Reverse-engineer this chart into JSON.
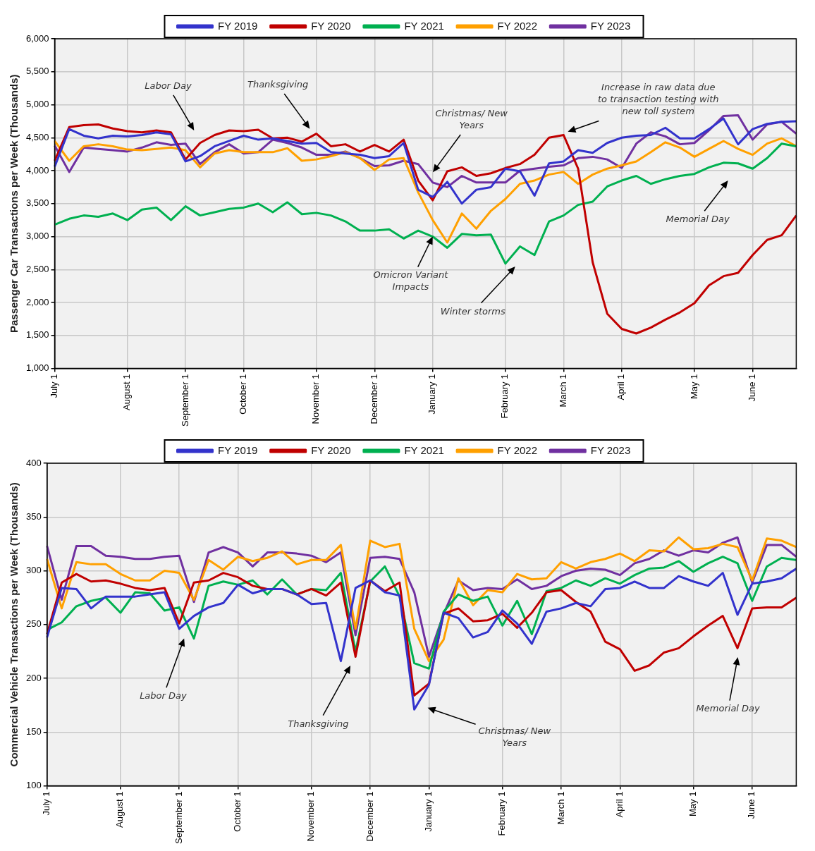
{
  "chart_data": [
    {
      "type": "line",
      "ylabel": "Passenger Car Transactions per Week (Thousands)",
      "legend": "top",
      "grid": true,
      "marker": "none",
      "categories": [
        "July 1",
        null,
        null,
        null,
        null,
        "August 1",
        null,
        null,
        null,
        "September 1",
        null,
        null,
        null,
        "October 1",
        null,
        null,
        null,
        null,
        "November 1",
        null,
        null,
        null,
        "December 1",
        null,
        null,
        null,
        "January 1",
        null,
        null,
        null,
        null,
        "February 1",
        null,
        null,
        null,
        "March 1",
        null,
        null,
        null,
        "April 1",
        null,
        null,
        null,
        null,
        "May 1",
        null,
        null,
        null,
        "June 1",
        null,
        null,
        null
      ],
      "ylim": [
        1000,
        6000
      ],
      "yticks": [
        {
          "value": 1000,
          "label": "1,000"
        },
        {
          "value": 1500,
          "label": "1,500"
        },
        {
          "value": 2000,
          "label": "2,000"
        },
        {
          "value": 2500,
          "label": "2,500"
        },
        {
          "value": 3000,
          "label": "3,000"
        },
        {
          "value": 3500,
          "label": "3,500"
        },
        {
          "value": 4000,
          "label": "4,000"
        },
        {
          "value": 4500,
          "label": "4,500"
        },
        {
          "value": 5000,
          "label": "5,000"
        },
        {
          "value": 5500,
          "label": "5,500"
        },
        {
          "value": 6000,
          "label": "6,000"
        }
      ],
      "series": [
        {
          "name": "FY 2019",
          "color": "#3333cc",
          "values": [
            4060,
            4630,
            4530,
            4490,
            4530,
            4520,
            4540,
            4580,
            4550,
            4140,
            4220,
            4370,
            4450,
            4530,
            4470,
            4490,
            4450,
            4410,
            4420,
            4280,
            4260,
            4240,
            4190,
            4220,
            4420,
            3710,
            3600,
            3830,
            3500,
            3710,
            3750,
            4030,
            3990,
            3620,
            4110,
            4140,
            4310,
            4270,
            4420,
            4500,
            4530,
            4540,
            4650,
            4490,
            4490,
            4630,
            4790,
            4400,
            4630,
            4710,
            4740,
            4750
          ]
        },
        {
          "name": "FY 2020",
          "color": "#c00000",
          "values": [
            4150,
            4660,
            4690,
            4700,
            4640,
            4600,
            4580,
            4610,
            4580,
            4170,
            4420,
            4540,
            4610,
            4600,
            4620,
            4490,
            4500,
            4440,
            4560,
            4370,
            4400,
            4290,
            4390,
            4290,
            4470,
            3850,
            3550,
            3990,
            4050,
            3920,
            3960,
            4040,
            4100,
            4240,
            4500,
            4540,
            4030,
            2610,
            1830,
            1600,
            1530,
            1620,
            1740,
            1850,
            1990,
            2260,
            2400,
            2450,
            2720,
            2950,
            3020,
            3320
          ]
        },
        {
          "name": "FY 2021",
          "color": "#00b050",
          "values": [
            3180,
            3270,
            3320,
            3300,
            3350,
            3250,
            3410,
            3440,
            3250,
            3460,
            3320,
            3370,
            3420,
            3440,
            3500,
            3370,
            3520,
            3340,
            3360,
            3320,
            3230,
            3090,
            3090,
            3110,
            2970,
            3090,
            3000,
            2830,
            3040,
            3020,
            3030,
            2590,
            2850,
            2720,
            3230,
            3320,
            3480,
            3530,
            3760,
            3850,
            3920,
            3800,
            3870,
            3920,
            3950,
            4050,
            4120,
            4110,
            4030,
            4190,
            4410,
            4370
          ]
        },
        {
          "name": "FY 2022",
          "color": "#ffa000",
          "values": [
            4450,
            4150,
            4370,
            4400,
            4370,
            4320,
            4310,
            4330,
            4350,
            4310,
            4050,
            4260,
            4310,
            4280,
            4280,
            4280,
            4340,
            4150,
            4170,
            4220,
            4280,
            4190,
            4010,
            4170,
            4190,
            3670,
            3250,
            2910,
            3350,
            3120,
            3390,
            3570,
            3800,
            3850,
            3940,
            3980,
            3800,
            3940,
            4030,
            4080,
            4140,
            4280,
            4430,
            4350,
            4210,
            4330,
            4450,
            4330,
            4240,
            4410,
            4490,
            4370
          ]
        },
        {
          "name": "FY 2023",
          "color": "#7030a0",
          "values": [
            4380,
            3980,
            4350,
            4330,
            4310,
            4290,
            4350,
            4430,
            4390,
            4410,
            4100,
            4280,
            4400,
            4260,
            4280,
            4470,
            4420,
            4350,
            4240,
            4240,
            4290,
            4190,
            4070,
            4080,
            4150,
            4100,
            3820,
            3750,
            3920,
            3820,
            3820,
            3820,
            4000,
            4030,
            4060,
            4080,
            4190,
            4210,
            4170,
            4040,
            4410,
            4580,
            4520,
            4400,
            4420,
            4610,
            4830,
            4840,
            4470,
            4700,
            4740,
            4560
          ]
        }
      ],
      "annotations": [
        "Labor Day",
        "Thanksgiving",
        "Christmas/ New Years",
        {
          "text": "Omicron Variant Impacts",
          "x": "January 1",
          "y": 3000
        },
        "Winter storms",
        "Increase in raw data due to transaction testing with new toll system",
        "Memorial Day"
      ]
    },
    {
      "type": "line",
      "ylabel": "Commercial Vehicle Transactions per Week (Thousands)",
      "legend": "top",
      "grid": true,
      "marker": "none",
      "categories": [
        "July 1",
        null,
        null,
        null,
        null,
        "August 1",
        null,
        null,
        null,
        "September 1",
        null,
        null,
        null,
        "October 1",
        null,
        null,
        null,
        null,
        "November 1",
        null,
        null,
        null,
        "December 1",
        null,
        null,
        null,
        "January 1",
        null,
        null,
        null,
        null,
        "February 1",
        null,
        null,
        null,
        "March 1",
        null,
        null,
        null,
        "April 1",
        null,
        null,
        null,
        null,
        "May 1",
        null,
        null,
        null,
        "June 1",
        null,
        null,
        null
      ],
      "ylim": [
        100,
        400
      ],
      "yticks": [
        100,
        150,
        200,
        250,
        300,
        350,
        400
      ],
      "series": [
        {
          "name": "FY 2019",
          "color": "#3333cc",
          "values": [
            238,
            284,
            283,
            265,
            276,
            276,
            276,
            278,
            280,
            246,
            258,
            266,
            270,
            287,
            279,
            283,
            283,
            278,
            269,
            270,
            216,
            284,
            291,
            280,
            277,
            171,
            194,
            261,
            256,
            238,
            243,
            263,
            251,
            232,
            262,
            265,
            270,
            267,
            283,
            284,
            290,
            284,
            284,
            295,
            290,
            286,
            298,
            259,
            288,
            290,
            293,
            302
          ]
        },
        {
          "name": "FY 2020",
          "color": "#c00000",
          "values": [
            241,
            289,
            297,
            290,
            291,
            288,
            284,
            282,
            284,
            251,
            289,
            291,
            298,
            294,
            286,
            283,
            283,
            278,
            283,
            277,
            289,
            220,
            291,
            281,
            289,
            184,
            195,
            260,
            265,
            253,
            254,
            260,
            247,
            261,
            280,
            282,
            271,
            262,
            234,
            227,
            207,
            212,
            224,
            228,
            239,
            249,
            258,
            228,
            265,
            266,
            266,
            275
          ]
        },
        {
          "name": "FY 2021",
          "color": "#00b050",
          "values": [
            245,
            252,
            267,
            272,
            275,
            261,
            280,
            279,
            263,
            266,
            237,
            286,
            290,
            287,
            291,
            278,
            292,
            278,
            283,
            282,
            298,
            225,
            290,
            304,
            276,
            214,
            209,
            262,
            278,
            272,
            276,
            249,
            272,
            241,
            281,
            284,
            291,
            286,
            293,
            288,
            296,
            302,
            303,
            309,
            299,
            307,
            313,
            307,
            272,
            304,
            312,
            310
          ]
        },
        {
          "name": "FY 2022",
          "color": "#ffa000",
          "values": [
            311,
            265,
            308,
            306,
            306,
            297,
            291,
            291,
            300,
            298,
            273,
            310,
            301,
            313,
            309,
            312,
            318,
            306,
            310,
            310,
            324,
            246,
            328,
            322,
            325,
            246,
            216,
            236,
            293,
            268,
            282,
            280,
            297,
            292,
            293,
            308,
            302,
            308,
            311,
            316,
            309,
            319,
            318,
            331,
            320,
            321,
            325,
            322,
            291,
            330,
            328,
            322
          ]
        },
        {
          "name": "FY 2023",
          "color": "#7030a0",
          "values": [
            323,
            273,
            323,
            323,
            314,
            313,
            311,
            311,
            313,
            314,
            271,
            317,
            322,
            317,
            304,
            317,
            317,
            316,
            314,
            308,
            317,
            240,
            312,
            313,
            311,
            280,
            220,
            260,
            291,
            282,
            284,
            283,
            292,
            283,
            286,
            295,
            300,
            302,
            301,
            296,
            307,
            311,
            319,
            314,
            319,
            317,
            326,
            331,
            289,
            324,
            324,
            313
          ]
        }
      ],
      "annotations": [
        "Labor Day",
        "Thanksgiving",
        "Christmas/ New Years",
        "Memorial Day"
      ]
    }
  ]
}
